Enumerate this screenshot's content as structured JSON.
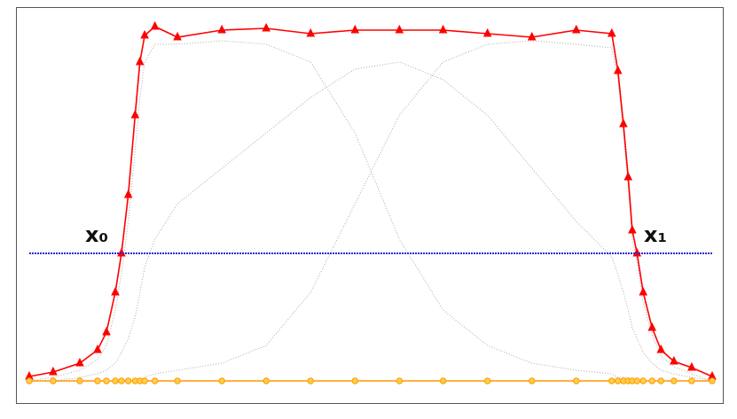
{
  "chart_data": {
    "type": "line",
    "xlim": [
      0,
      100
    ],
    "ylim": [
      0,
      100
    ],
    "x": [
      0,
      3.5,
      7.4,
      10,
      11.3,
      12.6,
      13.5,
      14.5,
      15.5,
      16.2,
      16.9,
      18.4,
      21.7,
      28.2,
      34.7,
      41.2,
      47.7,
      54.2,
      60.6,
      67.1,
      73.6,
      80.1,
      85.3,
      86.2,
      87,
      87.7,
      88.3,
      89,
      89.9,
      91.2,
      92.5,
      94.4,
      97,
      100
    ],
    "series": [
      {
        "color": "#a8a8a8",
        "style": "dotted",
        "values": [
          0,
          1,
          3,
          6,
          10,
          20,
          30,
          45,
          65,
          80,
          90,
          95,
          95,
          96,
          95,
          90,
          70,
          40,
          20,
          10,
          5,
          3,
          2,
          1,
          1,
          1,
          0,
          0,
          0,
          0,
          0,
          0,
          0,
          0
        ]
      },
      {
        "color": "#a8a8a8",
        "style": "dotted",
        "values": [
          0,
          0,
          0,
          0,
          0,
          0,
          0,
          0,
          0,
          0,
          1,
          2,
          3,
          5,
          10,
          25,
          50,
          75,
          90,
          95,
          96,
          95,
          94,
          85,
          70,
          55,
          40,
          34,
          22,
          13,
          7,
          4,
          2,
          0
        ]
      },
      {
        "color": "#a8a8a8",
        "style": "dotted",
        "values": [
          0,
          0,
          1,
          2,
          3,
          5,
          8,
          12,
          18,
          25,
          32,
          40,
          50,
          60,
          70,
          80,
          88,
          90,
          85,
          75,
          60,
          45,
          35,
          30,
          25,
          20,
          15,
          12,
          8,
          5,
          3,
          2,
          1,
          0
        ]
      },
      {
        "color": "#ff0000",
        "marker": "triangle",
        "values": [
          1.25,
          2.5,
          5,
          8.75,
          13.75,
          25,
          36,
          52.5,
          75,
          90,
          97.5,
          100,
          97,
          99,
          99.5,
          98,
          99,
          99,
          99,
          98,
          97,
          99,
          98,
          87.5,
          72.5,
          57.5,
          42.5,
          36,
          25,
          15,
          8.75,
          5.5,
          3.75,
          1.25
        ]
      },
      {
        "color": "#ff9900",
        "marker": "circle",
        "values": [
          0,
          0,
          0,
          0,
          0,
          0,
          0,
          0,
          0,
          0,
          0,
          0,
          0,
          0,
          0,
          0,
          0,
          0,
          0,
          0,
          0,
          0,
          0,
          0,
          0,
          0,
          0,
          0,
          0,
          0,
          0,
          0,
          0,
          0
        ]
      }
    ],
    "threshold": 36,
    "threshold_color": "#2a2ad8",
    "annotations": [
      "x₀",
      "x₁"
    ]
  }
}
